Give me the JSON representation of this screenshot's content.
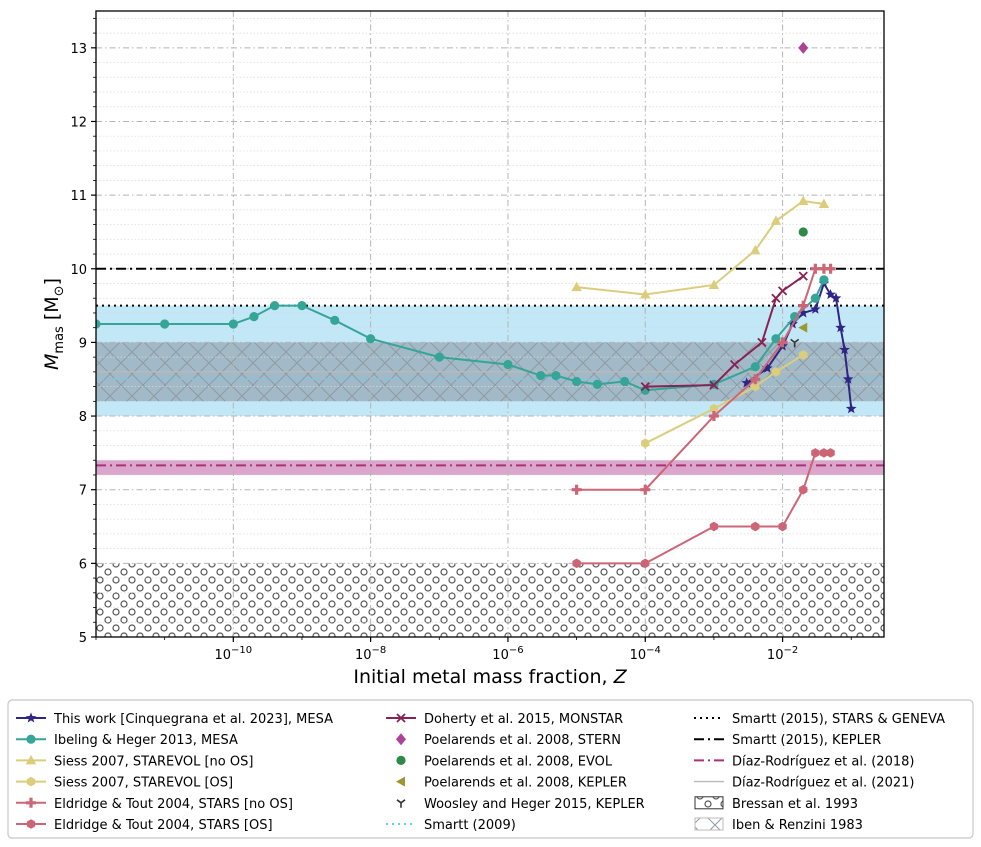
{
  "chart_data": {
    "type": "line",
    "xlabel": "Initial metal mass fraction, Z",
    "ylabel": "M_mas [M_⊙]",
    "xscale": "log",
    "xlim": [
      1e-12,
      0.3
    ],
    "ylim": [
      5,
      13.5
    ],
    "grid": true,
    "legend_position": "bottom",
    "x_ticks": [
      {
        "value": 1e-10,
        "base": "10",
        "exp": "−10"
      },
      {
        "value": 1e-08,
        "base": "10",
        "exp": "−8"
      },
      {
        "value": 1e-06,
        "base": "10",
        "exp": "−6"
      },
      {
        "value": 0.0001,
        "base": "10",
        "exp": "−4"
      },
      {
        "value": 0.01,
        "base": "10",
        "exp": "−2"
      }
    ],
    "y_ticks": [
      "5",
      "6",
      "7",
      "8",
      "9",
      "10",
      "11",
      "12",
      "13"
    ],
    "series": [
      {
        "name": "This work [Cinquegrana et al. 2023], MESA",
        "color": "#2e2585",
        "marker": "star",
        "linestyle": "solid",
        "x": [
          0.003,
          0.006,
          0.01,
          0.014,
          0.02,
          0.03,
          0.04,
          0.05,
          0.06,
          0.07,
          0.08,
          0.09,
          0.1
        ],
        "y": [
          8.45,
          8.65,
          8.95,
          9.25,
          9.4,
          9.45,
          9.8,
          9.65,
          9.6,
          9.2,
          8.9,
          8.5,
          8.1
        ]
      },
      {
        "name": "Ibeling & Heger 2013, MESA",
        "color": "#34a597",
        "marker": "circle",
        "linestyle": "solid",
        "x": [
          1e-12,
          1e-11,
          1e-10,
          2e-10,
          4e-10,
          1e-09,
          3e-09,
          1e-08,
          1e-07,
          1e-06,
          3e-06,
          5e-06,
          1e-05,
          2e-05,
          5e-05,
          0.0001,
          0.001,
          0.004,
          0.008,
          0.015,
          0.03,
          0.04
        ],
        "y": [
          9.25,
          9.25,
          9.25,
          9.35,
          9.5,
          9.5,
          9.3,
          9.05,
          8.8,
          8.7,
          8.55,
          8.55,
          8.47,
          8.43,
          8.47,
          8.35,
          8.43,
          8.67,
          9.05,
          9.35,
          9.6,
          9.85
        ]
      },
      {
        "name": "Siess 2007, STAREVOL [no OS]",
        "color": "#dccd7d",
        "marker": "triangle",
        "linestyle": "solid",
        "x": [
          1e-05,
          0.0001,
          0.001,
          0.004,
          0.008,
          0.02,
          0.04
        ],
        "y": [
          9.75,
          9.65,
          9.78,
          10.25,
          10.65,
          10.92,
          10.88
        ]
      },
      {
        "name": "Siess 2007, STAREVOL [OS]",
        "color": "#dccd7d",
        "marker": "hexagon",
        "linestyle": "solid",
        "x": [
          0.0001,
          0.001,
          0.004,
          0.008,
          0.02
        ],
        "y": [
          7.63,
          8.1,
          8.4,
          8.6,
          8.83
        ]
      },
      {
        "name": "Eldridge & Tout 2004, STARS [no OS]",
        "color": "#cc6677",
        "marker": "plus",
        "linestyle": "solid",
        "x": [
          1e-05,
          0.0001,
          0.001,
          0.004,
          0.01,
          0.02,
          0.03,
          0.04,
          0.05
        ],
        "y": [
          7.0,
          7.0,
          8.0,
          8.5,
          9.0,
          9.5,
          10.0,
          10.0,
          10.0
        ]
      },
      {
        "name": "Eldridge & Tout 2004, STARS [OS]",
        "color": "#cc6677",
        "marker": "hexagon",
        "linestyle": "solid",
        "x": [
          1e-05,
          0.0001,
          0.001,
          0.004,
          0.01,
          0.02,
          0.03,
          0.04,
          0.05
        ],
        "y": [
          6.0,
          6.0,
          6.5,
          6.5,
          6.5,
          7.0,
          7.5,
          7.5,
          7.5
        ]
      },
      {
        "name": "Doherty et al. 2015, MONSTAR",
        "color": "#882255",
        "marker": "x",
        "linestyle": "solid",
        "x": [
          0.0001,
          0.001,
          0.002,
          0.005,
          0.008,
          0.01,
          0.02
        ],
        "y": [
          8.4,
          8.42,
          8.7,
          9.0,
          9.6,
          9.7,
          9.9
        ]
      },
      {
        "name": "Poelarends et al. 2008, STERN",
        "color": "#aa4499",
        "marker": "diamond",
        "linestyle": "none",
        "x": [
          0.02
        ],
        "y": [
          13.0
        ]
      },
      {
        "name": "Poelarends et al. 2008, EVOL",
        "color": "#2f8a4a",
        "marker": "circle",
        "linestyle": "none",
        "x": [
          0.02
        ],
        "y": [
          10.5
        ]
      },
      {
        "name": "Poelarends et al. 2008, KEPLER",
        "color": "#999933",
        "marker": "tri-left",
        "linestyle": "none",
        "x": [
          0.02
        ],
        "y": [
          9.2
        ]
      },
      {
        "name": "Woosley and Heger 2015, KEPLER",
        "color": "#333333",
        "marker": "tri-down",
        "linestyle": "none",
        "x": [
          0.015
        ],
        "y": [
          9.0
        ]
      }
    ],
    "hlines": [
      {
        "name": "Smartt (2009)",
        "y": 8.5,
        "color": "#6ccbea",
        "linestyle": "dotted",
        "band": [
          8.0,
          9.5
        ],
        "band_color": "#bfe6f5"
      },
      {
        "name": "Smartt (2015), STARS & GENEVA",
        "y": 9.5,
        "color": "#000000",
        "linestyle": "dotted"
      },
      {
        "name": "Smartt (2015), KEPLER",
        "y": 10.0,
        "color": "#000000",
        "linestyle": "dashdot"
      },
      {
        "name": "Díaz-Rodríguez et al. (2018)",
        "y": 7.33,
        "color": "#aa3377",
        "linestyle": "dashdot",
        "band": [
          7.2,
          7.4
        ],
        "band_color": "#d9a1c9"
      },
      {
        "name": "Díaz-Rodríguez et al. (2021)",
        "y": 8.6,
        "color": "#bbbbbb",
        "linestyle": "solid",
        "band": [
          8.2,
          9.0
        ],
        "band_color": "#9cb2be"
      }
    ],
    "regions": [
      {
        "name": "Bressan et al. 1993",
        "y": [
          5.0,
          6.0
        ],
        "hatch": "circles"
      },
      {
        "name": "Iben & Renzini 1983",
        "y": [
          8.2,
          9.0
        ],
        "hatch": "cross"
      }
    ]
  }
}
